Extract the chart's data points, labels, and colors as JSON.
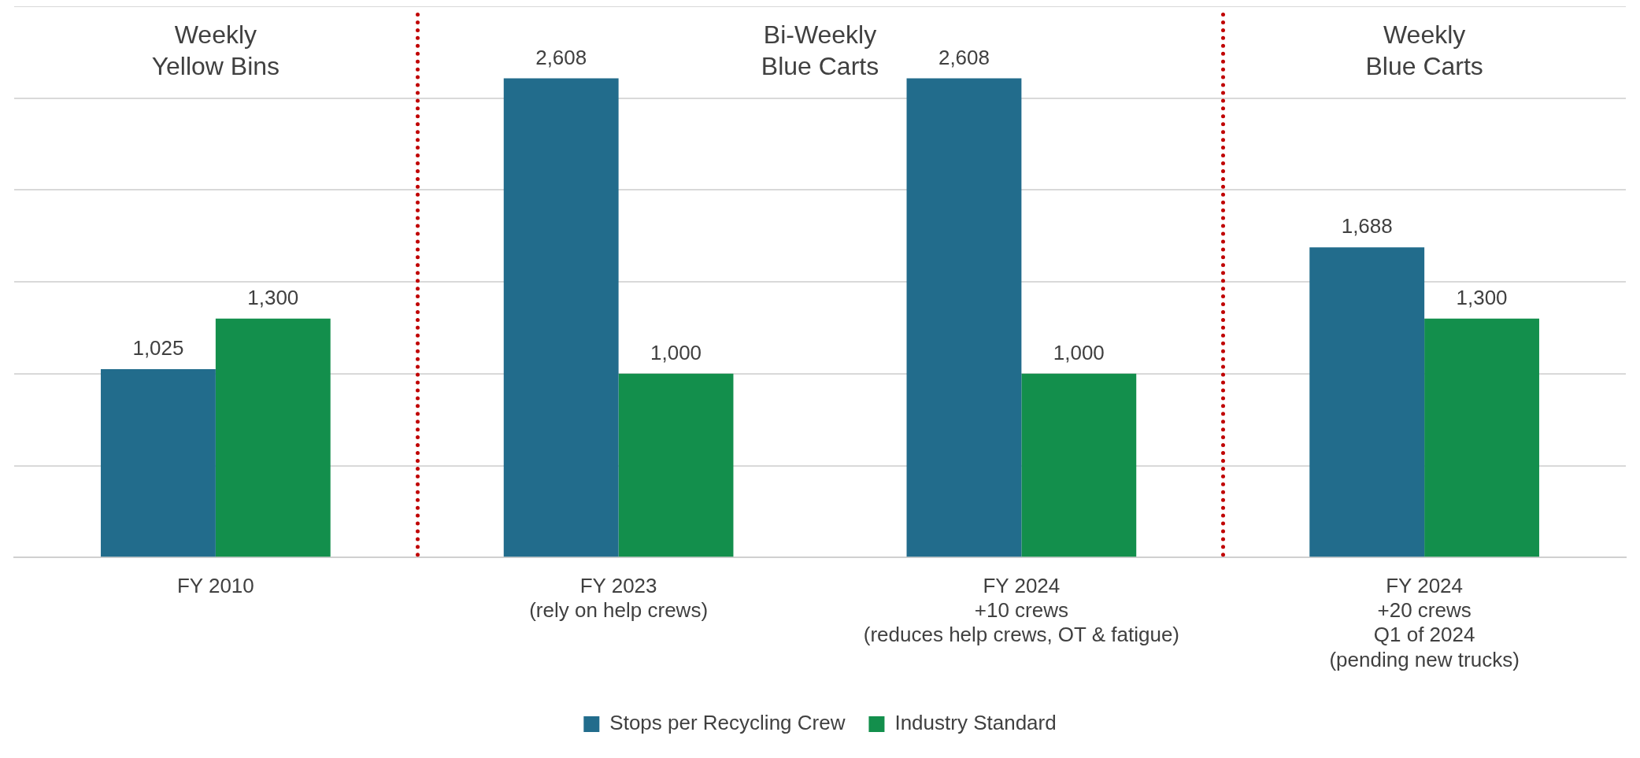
{
  "chart_data": {
    "type": "bar",
    "categories": [
      "FY 2010",
      "FY 2023\n(rely on help crews)",
      "FY 2024\n+10 crews\n(reduces help crews, OT & fatigue)",
      "FY 2024\n+20 crews\nQ1 of 2024\n(pending new trucks)"
    ],
    "series": [
      {
        "name": "Stops per Recycling Crew",
        "color": "#226c8c",
        "values": [
          1025,
          2608,
          2608,
          1688
        ],
        "value_labels": [
          "1,025",
          "2,608",
          "2,608",
          "1,688"
        ]
      },
      {
        "name": "Industry Standard",
        "color": "#138f4c",
        "values": [
          1300,
          1000,
          1000,
          1300
        ],
        "value_labels": [
          "1,300",
          "1,000",
          "1,000",
          "1,300"
        ]
      }
    ],
    "tick_labels": "x",
    "grid": "y",
    "legend": "bottom",
    "annotations": [
      "Weekly\nYellow Bins",
      "Bi-Weekly\nBlue Carts",
      "Weekly\nBlue Carts"
    ]
  }
}
